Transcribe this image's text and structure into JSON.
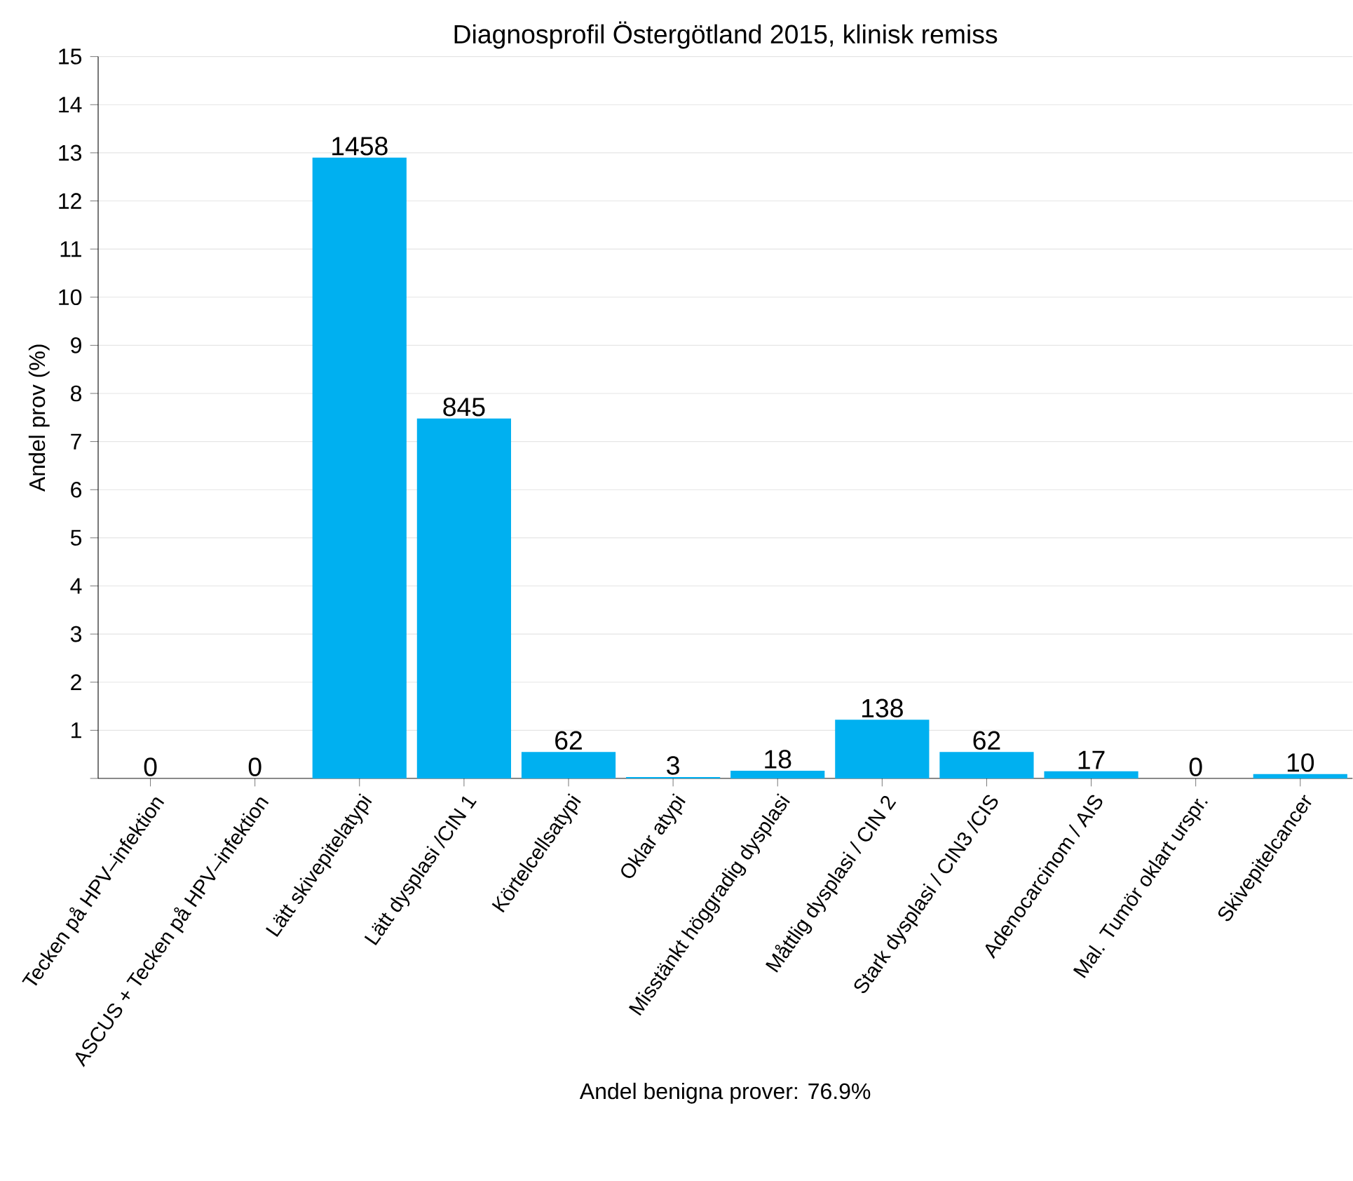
{
  "chart_data": {
    "type": "bar",
    "title": "Diagnosprofil Östergötland 2015, klinisk remiss",
    "ylabel": "Andel prov (%)",
    "xlabel": "Andel benigna prover: 76.9%",
    "categories": [
      "Tecken på HPV–infektion",
      "ASCUS + Tecken på HPV–infektion",
      "Lätt skivepitelatypi",
      "Lätt dysplasi /CIN 1",
      "Körtelcellsatypi",
      "Oklar atypi",
      "Misstänkt höggradig dysplasi",
      "Måttlig dysplasi / CIN 2",
      "Stark dysplasi / CIN3 /CIS",
      "Adenocarcinom / AIS",
      "Mal. Tumör oklart urspr.",
      "Skivepitelcancer"
    ],
    "values": [
      0,
      0,
      12.9,
      7.48,
      0.55,
      0.03,
      0.16,
      1.22,
      0.55,
      0.15,
      0,
      0.09
    ],
    "annotations": [
      {
        "text": "0",
        "x": "Tecken på HPV–infektion",
        "y": 0
      },
      {
        "text": "0",
        "x": "ASCUS + Tecken på HPV–infektion",
        "y": 0
      },
      {
        "text": "1458",
        "x": "Lätt skivepitelatypi",
        "y": 12.9
      },
      {
        "text": "845",
        "x": "Lätt dysplasi /CIN 1",
        "y": 7.48
      },
      {
        "text": "62",
        "x": "Körtelcellsatypi",
        "y": 0.55
      },
      {
        "text": "3",
        "x": "Oklar atypi",
        "y": 0.03
      },
      {
        "text": "18",
        "x": "Misstänkt höggradig dysplasi",
        "y": 0.16
      },
      {
        "text": "138",
        "x": "Måttlig dysplasi / CIN 2",
        "y": 1.22
      },
      {
        "text": "62",
        "x": "Stark dysplasi / CIN3 /CIS",
        "y": 0.55
      },
      {
        "text": "17",
        "x": "Adenocarcinom / AIS",
        "y": 0.15
      },
      {
        "text": "0",
        "x": "Mal. Tumör oklart urspr.",
        "y": 0
      },
      {
        "text": "10",
        "x": "Skivepitelcancer",
        "y": 0.09
      }
    ],
    "color": "#00b0f0",
    "ylim": [
      0,
      15
    ],
    "yticks": [
      {
        "value": 0,
        "label": null
      },
      1,
      2,
      3,
      4,
      5,
      6,
      7,
      8,
      9,
      10,
      11,
      12,
      13,
      14,
      15
    ],
    "grid": "y"
  }
}
